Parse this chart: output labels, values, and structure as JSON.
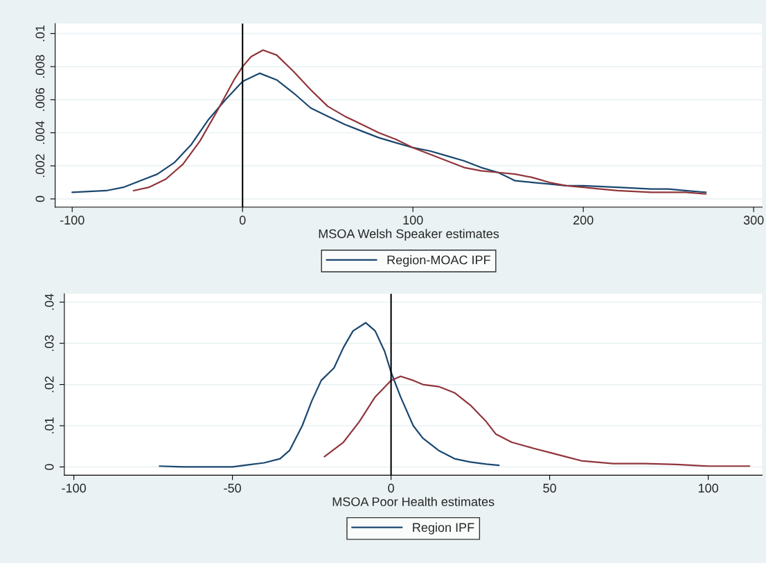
{
  "chart_data": [
    {
      "type": "line",
      "xlabel": "MSOA Welsh Speaker estimates",
      "xlim": [
        -110,
        305
      ],
      "xticks": [
        -100,
        0,
        100,
        200,
        300
      ],
      "ylim": [
        -0.0005,
        0.0106
      ],
      "yticks": [
        0,
        {
          "value": 0.002,
          "label": ".002"
        },
        {
          "value": 0.004,
          "label": ".004"
        },
        {
          "value": 0.006,
          "label": ".006"
        },
        {
          "value": 0.008,
          "label": ".008"
        },
        {
          "value": 0.01,
          "label": ".01"
        }
      ],
      "grid": "y",
      "legend": "bottom",
      "ref_lines": [
        {
          "axis": "x",
          "value": 0,
          "color": "#000000"
        }
      ],
      "series": [
        {
          "name": "Region-MOAC IPF",
          "color": "#1a476f",
          "x": [
            -100,
            -80,
            -70,
            -50,
            -40,
            -30,
            -20,
            -10,
            0,
            10,
            20,
            30,
            40,
            50,
            60,
            70,
            80,
            90,
            100,
            110,
            120,
            130,
            140,
            150,
            160,
            170,
            180,
            190,
            200,
            220,
            240,
            250,
            260,
            272
          ],
          "values": [
            0.0004,
            0.0005,
            0.0007,
            0.0015,
            0.0022,
            0.0033,
            0.0048,
            0.006,
            0.0071,
            0.0076,
            0.0072,
            0.0064,
            0.0055,
            0.005,
            0.0045,
            0.0041,
            0.0037,
            0.0034,
            0.0031,
            0.0029,
            0.0026,
            0.0023,
            0.0019,
            0.0016,
            0.0011,
            0.001,
            0.0009,
            0.0008,
            0.0008,
            0.0007,
            0.0006,
            0.0006,
            0.0005,
            0.0004
          ]
        },
        {
          "color": "#90353b",
          "x": [
            -64,
            -55,
            -45,
            -35,
            -25,
            -15,
            -5,
            0,
            5,
            12,
            20,
            30,
            40,
            50,
            60,
            70,
            80,
            90,
            100,
            110,
            120,
            130,
            140,
            150,
            160,
            170,
            180,
            190,
            200,
            210,
            220,
            240,
            260,
            272
          ],
          "values": [
            0.0005,
            0.0007,
            0.0012,
            0.0021,
            0.0035,
            0.0053,
            0.0072,
            0.008,
            0.0086,
            0.009,
            0.0087,
            0.0077,
            0.0066,
            0.0056,
            0.005,
            0.0045,
            0.004,
            0.0036,
            0.0031,
            0.0027,
            0.0023,
            0.0019,
            0.0017,
            0.0016,
            0.0015,
            0.0013,
            0.001,
            0.0008,
            0.0007,
            0.0006,
            0.0005,
            0.0004,
            0.0004,
            0.0003
          ]
        }
      ]
    },
    {
      "type": "line",
      "xlabel": "MSOA Poor Health estimates",
      "xlim": [
        -103,
        117
      ],
      "xticks": [
        -100,
        -50,
        0,
        50,
        100
      ],
      "ylim": [
        -0.002,
        0.042
      ],
      "yticks": [
        0,
        {
          "value": 0.01,
          "label": ".01"
        },
        {
          "value": 0.02,
          "label": ".02"
        },
        {
          "value": 0.03,
          "label": ".03"
        },
        {
          "value": 0.04,
          "label": ".04"
        }
      ],
      "grid": "y",
      "legend": "bottom",
      "ref_lines": [
        {
          "axis": "x",
          "value": 0,
          "color": "#000000"
        }
      ],
      "series": [
        {
          "name": "Region IPF",
          "color": "#1a476f",
          "x": [
            -73,
            -65,
            -50,
            -45,
            -40,
            -35,
            -32,
            -28,
            -25,
            -22,
            -18,
            -15,
            -12,
            -8,
            -5,
            -2,
            0,
            3,
            7,
            10,
            15,
            20,
            25,
            30,
            34
          ],
          "values": [
            0.0002,
            0,
            0,
            0.0005,
            0.001,
            0.002,
            0.004,
            0.01,
            0.016,
            0.021,
            0.024,
            0.029,
            0.033,
            0.035,
            0.033,
            0.028,
            0.023,
            0.017,
            0.01,
            0.007,
            0.004,
            0.002,
            0.0012,
            0.0007,
            0.0004
          ]
        },
        {
          "color": "#90353b",
          "x": [
            -21,
            -15,
            -10,
            -5,
            0,
            3,
            7,
            10,
            15,
            20,
            25,
            30,
            33,
            38,
            45,
            50,
            55,
            60,
            70,
            80,
            90,
            100,
            113
          ],
          "values": [
            0.0025,
            0.006,
            0.011,
            0.017,
            0.021,
            0.022,
            0.021,
            0.02,
            0.0195,
            0.018,
            0.015,
            0.011,
            0.008,
            0.006,
            0.0045,
            0.0035,
            0.0025,
            0.0015,
            0.0008,
            0.0008,
            0.0006,
            0.0002,
            0.0002
          ]
        }
      ]
    }
  ]
}
